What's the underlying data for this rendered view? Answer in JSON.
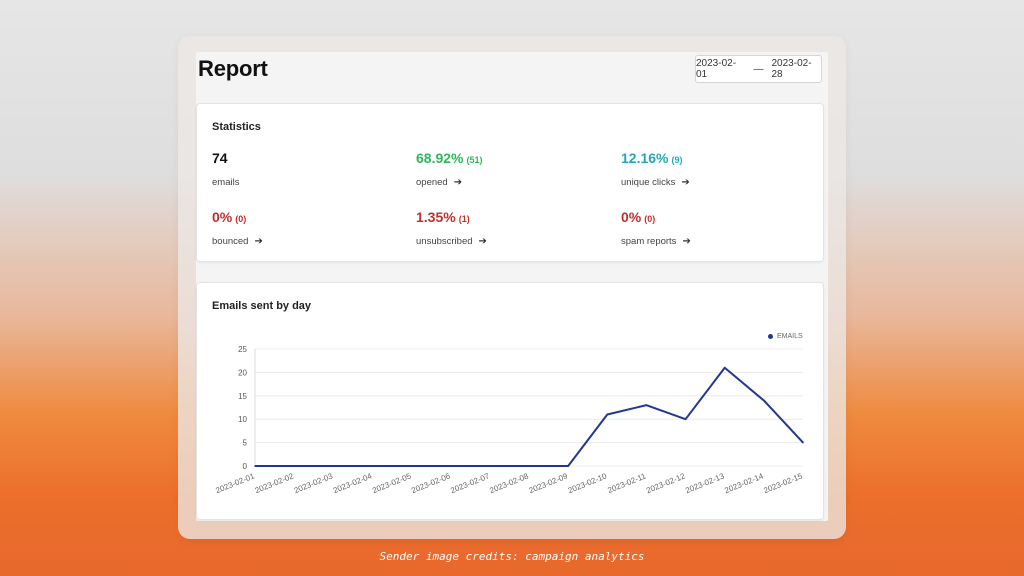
{
  "report": {
    "title": "Report",
    "date_from": "2023-02-01",
    "date_sep": "—",
    "date_to": "2023-02-28"
  },
  "stats": {
    "title": "Statistics",
    "emails": {
      "value": "74",
      "label": "emails",
      "color": "#111111"
    },
    "opened": {
      "value": "68.92%",
      "count": "(51)",
      "label": "opened",
      "color": "#2eb85c"
    },
    "unique_clicks": {
      "value": "12.16%",
      "count": "(9)",
      "label": "unique clicks",
      "color": "#22a9b8"
    },
    "bounced": {
      "value": "0%",
      "count": "(0)",
      "label": "bounced",
      "color": "#c0302b"
    },
    "unsubscribed": {
      "value": "1.35%",
      "count": "(1)",
      "label": "unsubscribed",
      "color": "#c0302b"
    },
    "spam_reports": {
      "value": "0%",
      "count": "(0)",
      "label": "spam reports",
      "color": "#c0302b"
    },
    "arrow_icon": "arrow-right-icon"
  },
  "chart": {
    "title": "Emails sent by day"
  },
  "chart_data": {
    "type": "line",
    "x": [
      "2023-02-01",
      "2023-02-02",
      "2023-02-03",
      "2023-02-04",
      "2023-02-05",
      "2023-02-06",
      "2023-02-07",
      "2023-02-08",
      "2023-02-09",
      "2023-02-10",
      "2023-02-11",
      "2023-02-12",
      "2023-02-13",
      "2023-02-14",
      "2023-02-15"
    ],
    "series": [
      {
        "name": "EMAILS",
        "color": "#22378f",
        "values": [
          0,
          0,
          0,
          0,
          0,
          0,
          0,
          0,
          0,
          11,
          13,
          10,
          21,
          14,
          5
        ]
      }
    ],
    "yticks": [
      0,
      5,
      10,
      15,
      20,
      25
    ],
    "ylim": [
      0,
      25
    ],
    "grid": true,
    "legend": "top-right"
  },
  "caption": "Sender image credits: campaign analytics"
}
